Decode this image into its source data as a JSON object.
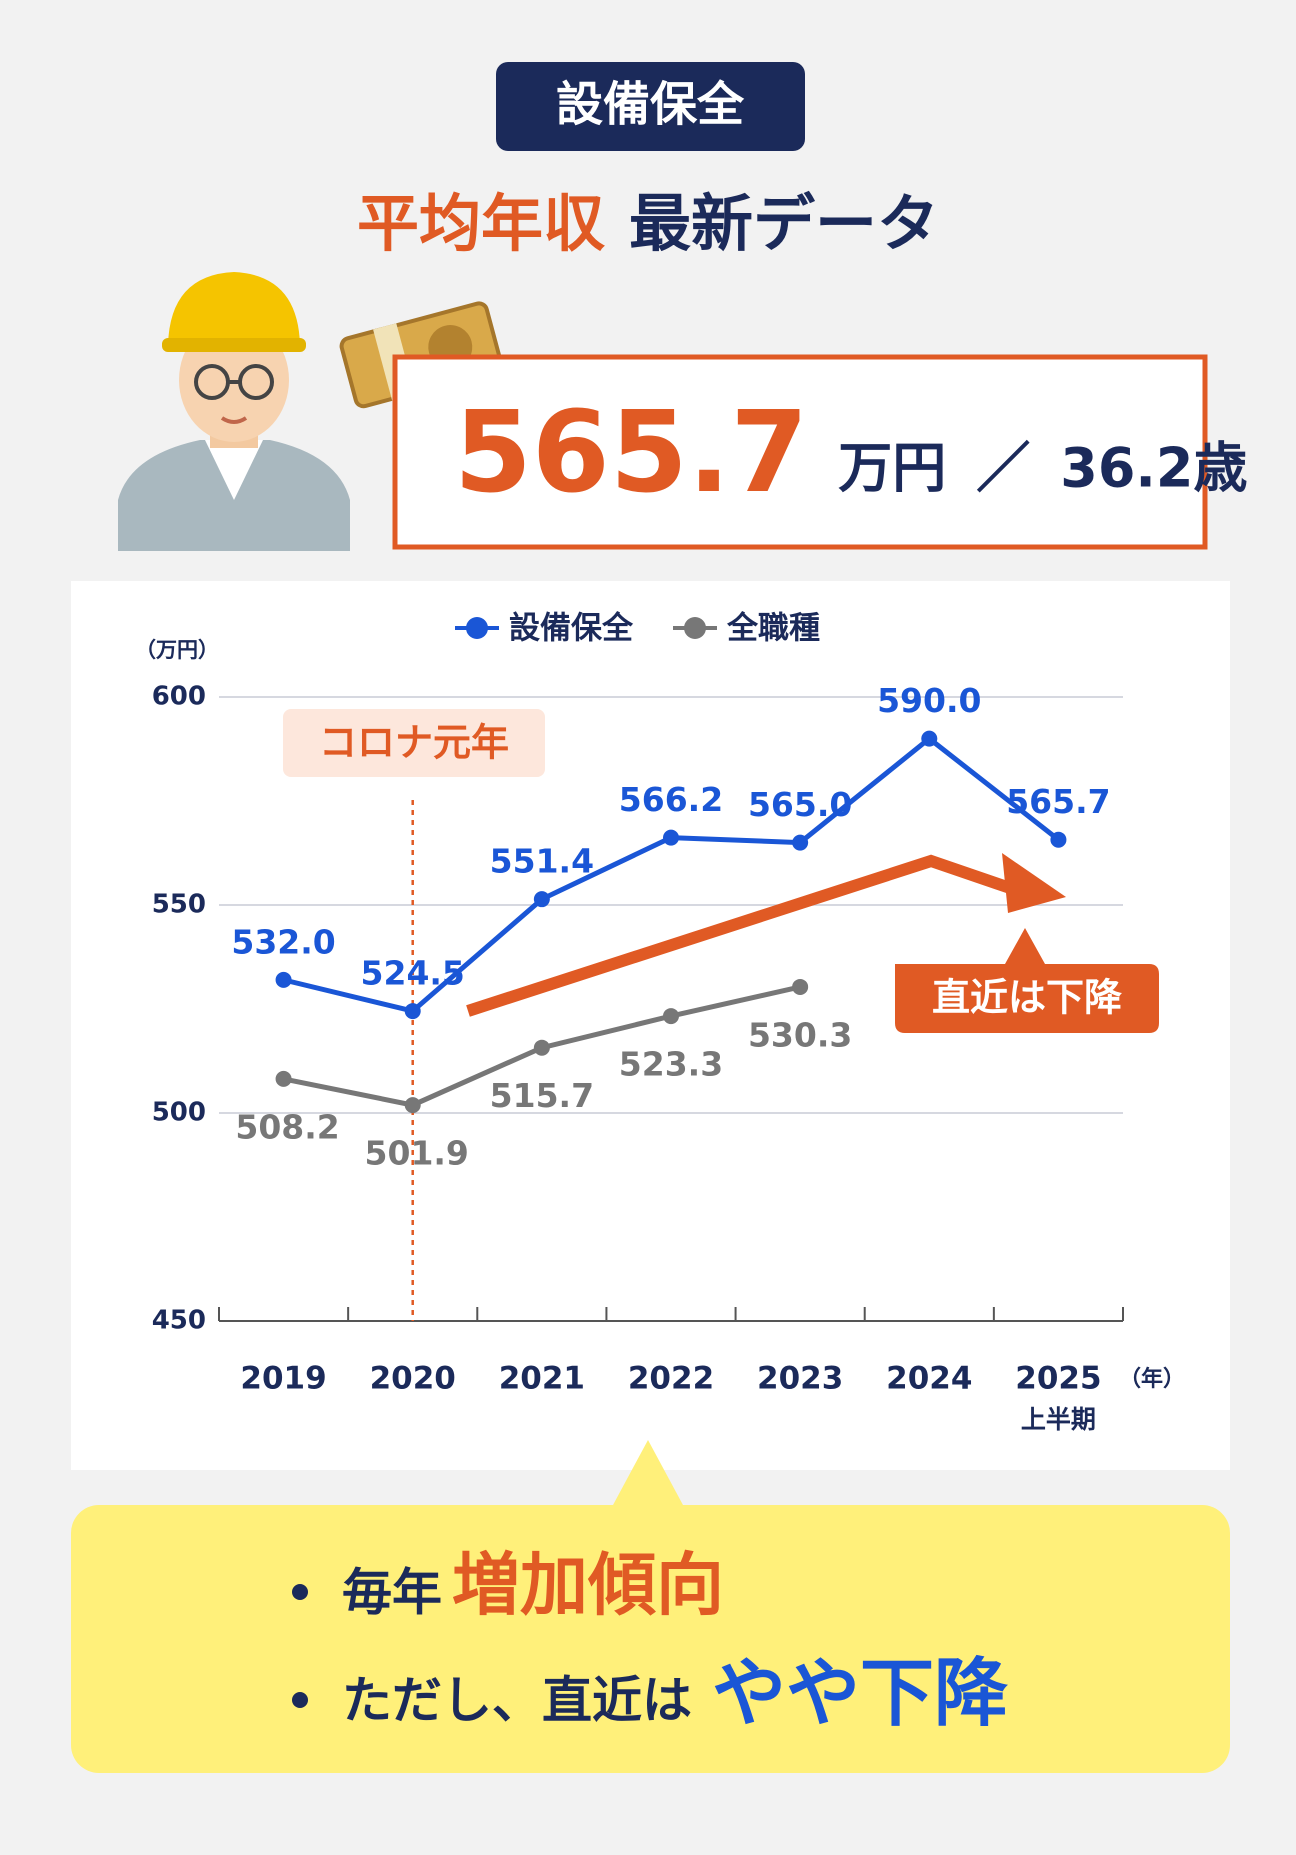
{
  "header": {
    "badge": "設備保全",
    "title_highlight": "平均年収",
    "title_rest": "最新データ"
  },
  "summary": {
    "salary": "565.7",
    "salary_unit": "万円",
    "separator": "／",
    "age": "36.2歳"
  },
  "chart_data": {
    "type": "line",
    "categories": [
      "2019",
      "2020",
      "2021",
      "2022",
      "2023",
      "2024",
      "2025"
    ],
    "x_note": "上半期",
    "x_unit": "（年）",
    "y_unit": "（万円）",
    "series": [
      {
        "name": "設備保全",
        "color": "#1a56d6",
        "values": [
          532.0,
          524.5,
          551.4,
          566.2,
          565.0,
          590.0,
          565.7
        ],
        "value_labels": [
          "532.0",
          "524.5",
          "551.4",
          "566.2",
          "565.0",
          "590.0",
          "565.7"
        ]
      },
      {
        "name": "全職種",
        "color": "#777777",
        "values": [
          508.2,
          501.9,
          515.7,
          523.3,
          530.3,
          null,
          null
        ],
        "value_labels": [
          "508.2",
          "501.9",
          "515.7",
          "523.3",
          "530.3",
          null,
          null
        ]
      }
    ],
    "ylim": [
      450,
      600
    ],
    "yticks": [
      450,
      500,
      550,
      600
    ],
    "grid": true,
    "legend": "top",
    "annotations": {
      "covid": "コロナ元年",
      "recent": "直近は下降"
    }
  },
  "takeaways": [
    {
      "text": "毎年",
      "highlight": "増加傾向"
    },
    {
      "text": "ただし、直近は",
      "highlight": "やや下降"
    }
  ]
}
